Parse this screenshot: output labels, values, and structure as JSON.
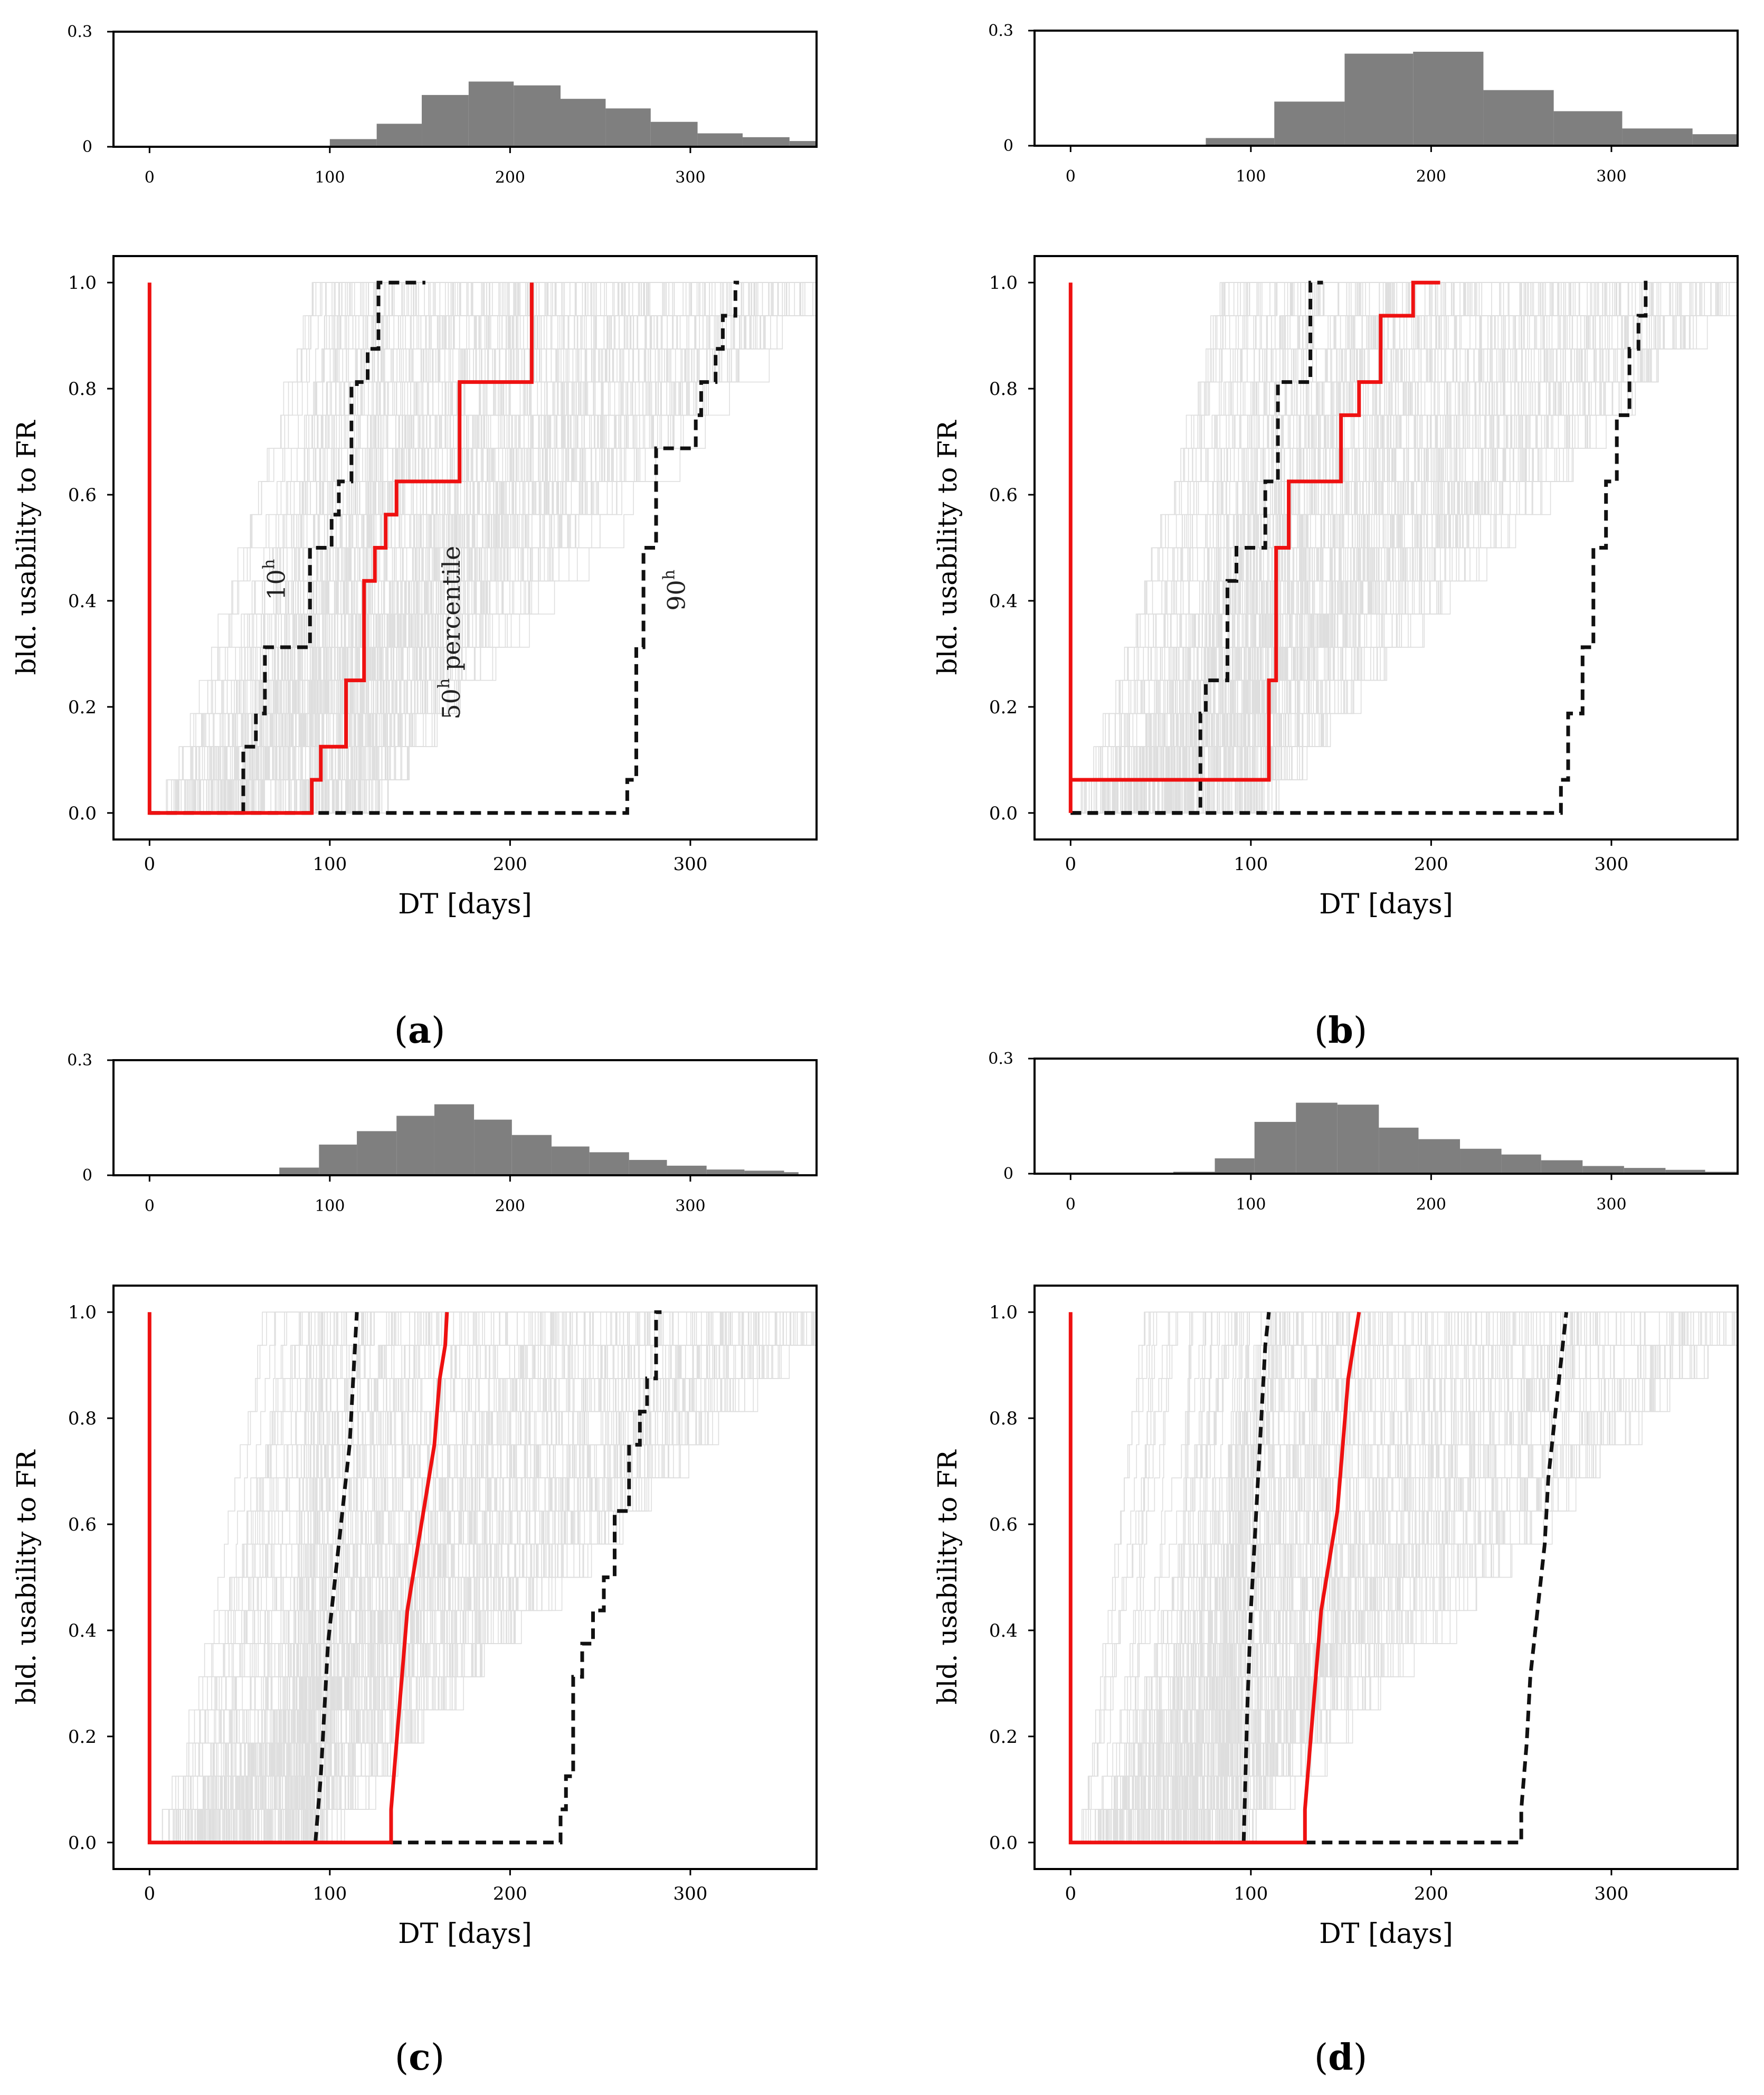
{
  "colors": {
    "hist_fill": "#7f7f7f",
    "trace": "#c4c4c4",
    "median": "#ee1111",
    "percentile": "#111111",
    "axis": "#000000"
  },
  "chart_data": [
    {
      "panel": "a",
      "type": "line",
      "label_letter": "a",
      "hist": {
        "type": "bar",
        "ylim": [
          0,
          0.3
        ],
        "yticks": [
          "0",
          "0.3"
        ],
        "xlim": [
          -20,
          370
        ],
        "xticks": [
          "0",
          "100",
          "200",
          "300"
        ],
        "bin_edges": [
          0,
          25,
          50,
          75,
          100,
          126,
          151,
          177,
          202,
          228,
          253,
          278,
          304,
          329,
          355,
          380
        ],
        "values": [
          0,
          0,
          0,
          0,
          0.02,
          0.06,
          0.135,
          0.17,
          0.16,
          0.125,
          0.1,
          0.065,
          0.035,
          0.025,
          0.015
        ]
      },
      "main": {
        "xlabel": "DT [days]",
        "ylabel": "bld. usability to FR",
        "xlim": [
          -20,
          370
        ],
        "ylim": [
          -0.05,
          1.05
        ],
        "xticks": [
          "0",
          "100",
          "200",
          "300"
        ],
        "yticks": [
          "0.0",
          "0.2",
          "0.4",
          "0.6",
          "0.8",
          "1.0"
        ],
        "trace_band": {
          "start_min": 0,
          "start_max": 120,
          "end_min": 90,
          "end_max": 370
        },
        "annotations": [
          {
            "base": "10",
            "sup": "h",
            "x": 75,
            "y": 0.44
          },
          {
            "base": "50",
            "sup": "h",
            "suffix": " percentile",
            "x": 172,
            "y": 0.34
          },
          {
            "base": "90",
            "sup": "h",
            "x": 297,
            "y": 0.42
          }
        ],
        "series": [
          {
            "name": "50th percentile",
            "role": "median",
            "x": [
              0,
              0,
              0,
              90,
              90,
              95,
              95,
              109,
              109,
              119,
              119,
              125,
              125,
              131,
              131,
              137,
              137,
              172,
              172,
              212,
              212
            ],
            "y": [
              1,
              0,
              0,
              0,
              0.0625,
              0.0625,
              0.125,
              0.125,
              0.25,
              0.25,
              0.4375,
              0.4375,
              0.5,
              0.5,
              0.5625,
              0.5625,
              0.625,
              0.625,
              0.8125,
              0.8125,
              1.0
            ]
          },
          {
            "name": "10th percentile",
            "role": "percentile",
            "x": [
              52,
              52,
              59,
              59,
              64,
              64,
              73,
              73,
              89,
              89,
              97,
              97,
              101,
              101,
              105,
              105,
              112,
              112,
              115,
              115,
              121,
              121,
              127,
              127,
              153
            ],
            "y": [
              0,
              0.125,
              0.125,
              0.1875,
              0.1875,
              0.3125,
              0.3125,
              0.3125,
              0.3125,
              0.5,
              0.5,
              0.5,
              0.5,
              0.5625,
              0.5625,
              0.625,
              0.625,
              0.8,
              0.8,
              0.8125,
              0.8125,
              0.875,
              0.875,
              1.0,
              1.0
            ]
          },
          {
            "name": "90th percentile",
            "role": "percentile",
            "x": [
              0,
              265,
              265,
              270,
              270,
              274,
              274,
              281,
              281,
              290,
              290,
              303,
              303,
              306,
              306,
              314,
              314,
              318,
              318,
              325,
              325,
              327
            ],
            "y": [
              0,
              0,
              0.0625,
              0.0625,
              0.3125,
              0.3125,
              0.5,
              0.5,
              0.6875,
              0.6875,
              0.6875,
              0.6875,
              0.75,
              0.75,
              0.8125,
              0.8125,
              0.875,
              0.875,
              0.9375,
              0.9375,
              1.0,
              1.0
            ]
          }
        ]
      }
    },
    {
      "panel": "b",
      "type": "line",
      "label_letter": "b",
      "hist": {
        "type": "bar",
        "ylim": [
          0,
          0.3
        ],
        "yticks": [
          "0",
          "0.3"
        ],
        "xlim": [
          -20,
          370
        ],
        "xticks": [
          "0",
          "100",
          "200",
          "300"
        ],
        "bin_edges": [
          0,
          25,
          50,
          75,
          113,
          152,
          190,
          229,
          268,
          306,
          345,
          384
        ],
        "values": [
          0,
          0,
          0,
          0.02,
          0.115,
          0.24,
          0.245,
          0.145,
          0.09,
          0.045,
          0.03
        ]
      },
      "main": {
        "xlabel": "DT [days]",
        "ylabel": "bld. usability to FR",
        "xlim": [
          -20,
          370
        ],
        "ylim": [
          -0.05,
          1.05
        ],
        "xticks": [
          "0",
          "100",
          "200",
          "300"
        ],
        "yticks": [
          "0.0",
          "0.2",
          "0.4",
          "0.6",
          "0.8",
          "1.0"
        ],
        "trace_band": {
          "start_min": 0,
          "start_max": 100,
          "end_min": 80,
          "end_max": 370
        },
        "annotations": [],
        "series": [
          {
            "name": "50th percentile",
            "role": "median",
            "x": [
              0,
              0,
              0,
              110,
              110,
              114,
              114,
              121,
              121,
              128,
              128,
              150,
              150,
              160,
              160,
              172,
              172,
              190,
              190,
              205
            ],
            "y": [
              1,
              0,
              0.0625,
              0.0625,
              0.25,
              0.25,
              0.5,
              0.5,
              0.625,
              0.625,
              0.625,
              0.625,
              0.75,
              0.75,
              0.8125,
              0.8125,
              0.9375,
              0.9375,
              1.0,
              1.0
            ]
          },
          {
            "name": "10th percentile",
            "role": "percentile",
            "x": [
              0,
              72,
              72,
              75,
              75,
              80,
              80,
              87,
              87,
              92,
              92,
              97,
              97,
              108,
              108,
              115,
              115,
              118,
              118,
              133,
              133,
              140
            ],
            "y": [
              0,
              0,
              0.1875,
              0.1875,
              0.25,
              0.25,
              0.25,
              0.25,
              0.4375,
              0.4375,
              0.5,
              0.5,
              0.5,
              0.5,
              0.625,
              0.625,
              0.8125,
              0.8125,
              0.8125,
              0.8125,
              1.0,
              1.0
            ]
          },
          {
            "name": "90th percentile",
            "role": "percentile",
            "x": [
              0,
              272,
              272,
              276,
              276,
              284,
              284,
              290,
              290,
              297,
              297,
              303,
              303,
              310,
              310,
              315,
              315,
              319,
              319,
              320
            ],
            "y": [
              0,
              0,
              0.0625,
              0.0625,
              0.1875,
              0.1875,
              0.3125,
              0.3125,
              0.5,
              0.5,
              0.625,
              0.625,
              0.75,
              0.75,
              0.875,
              0.875,
              0.9375,
              0.9375,
              1.0,
              1.0
            ]
          }
        ]
      }
    },
    {
      "panel": "c",
      "type": "line",
      "label_letter": "c",
      "hist": {
        "type": "bar",
        "ylim": [
          0,
          0.3
        ],
        "yticks": [
          "0",
          "0.3"
        ],
        "xlim": [
          -20,
          370
        ],
        "xticks": [
          "0",
          "100",
          "200",
          "300"
        ],
        "bin_edges": [
          0,
          25,
          50,
          72,
          94,
          115,
          137,
          158,
          180,
          201,
          223,
          244,
          266,
          287,
          309,
          330,
          352,
          360
        ],
        "values": [
          0,
          0,
          0,
          0.02,
          0.08,
          0.115,
          0.155,
          0.185,
          0.145,
          0.105,
          0.075,
          0.06,
          0.04,
          0.025,
          0.015,
          0.012,
          0.008
        ]
      },
      "main": {
        "xlabel": "DT [days]",
        "ylabel": "bld. usability to FR",
        "xlim": [
          -20,
          370
        ],
        "ylim": [
          -0.05,
          1.05
        ],
        "xticks": [
          "0",
          "100",
          "200",
          "300"
        ],
        "yticks": [
          "0.0",
          "0.2",
          "0.4",
          "0.6",
          "0.8",
          "1.0"
        ],
        "trace_band": {
          "start_min": 0,
          "start_max": 90,
          "end_min": 60,
          "end_max": 370
        },
        "annotations": [],
        "series": [
          {
            "name": "50th percentile",
            "role": "median",
            "x": [
              0,
              0,
              0,
              134,
              134,
              137,
              140,
              143,
              146,
              149,
              152,
              155,
              158,
              161,
              164,
              165
            ],
            "y": [
              1,
              0,
              0,
              0,
              0.0625,
              0.1875,
              0.3125,
              0.4375,
              0.5,
              0.5625,
              0.625,
              0.6875,
              0.75,
              0.875,
              0.9375,
              1.0
            ]
          },
          {
            "name": "10th percentile",
            "role": "percentile",
            "x": [
              134,
              228,
              228,
              231,
              231,
              235,
              235,
              240,
              240,
              246,
              246,
              252,
              252,
              258,
              258,
              266,
              266,
              272,
              272,
              276,
              276,
              281,
              281,
              284
            ],
            "y": [
              0,
              0,
              0.0625,
              0.0625,
              0.125,
              0.125,
              0.3125,
              0.3125,
              0.375,
              0.375,
              0.4375,
              0.4375,
              0.5,
              0.5,
              0.625,
              0.625,
              0.75,
              0.75,
              0.8125,
              0.8125,
              0.875,
              0.875,
              1.0,
              1.0
            ]
          },
          {
            "name": "90th percentile",
            "role": "percentile",
            "x": [
              92,
              95,
              97,
              99,
              101,
              103,
              105,
              107,
              109,
              111,
              113,
              115
            ],
            "y": [
              0,
              0.125,
              0.25,
              0.375,
              0.4375,
              0.5,
              0.5625,
              0.625,
              0.6875,
              0.75,
              0.875,
              1.0
            ]
          }
        ]
      }
    },
    {
      "panel": "d",
      "type": "line",
      "label_letter": "d",
      "hist": {
        "type": "bar",
        "ylim": [
          0,
          0.3
        ],
        "yticks": [
          "0",
          "0.3"
        ],
        "xlim": [
          -20,
          370
        ],
        "xticks": [
          "0",
          "100",
          "200",
          "300"
        ],
        "bin_edges": [
          0,
          25,
          50,
          57,
          80,
          102,
          125,
          148,
          171,
          193,
          216,
          239,
          261,
          284,
          307,
          330,
          352,
          375
        ],
        "values": [
          0,
          0,
          0,
          0.005,
          0.04,
          0.135,
          0.185,
          0.18,
          0.12,
          0.09,
          0.065,
          0.05,
          0.035,
          0.02,
          0.015,
          0.01,
          0.005
        ]
      },
      "main": {
        "xlabel": "DT [days]",
        "ylabel": "bld. usability to FR",
        "xlim": [
          -20,
          370
        ],
        "ylim": [
          -0.05,
          1.05
        ],
        "xticks": [
          "0",
          "100",
          "200",
          "300"
        ],
        "yticks": [
          "0.0",
          "0.2",
          "0.4",
          "0.6",
          "0.8",
          "1.0"
        ],
        "trace_band": {
          "start_min": 0,
          "start_max": 90,
          "end_min": 40,
          "end_max": 370
        },
        "annotations": [],
        "series": [
          {
            "name": "50th percentile",
            "role": "median",
            "x": [
              0,
              0,
              0,
              130,
              130,
              133,
              136,
              139,
              142,
              145,
              148,
              151,
              154,
              157,
              160
            ],
            "y": [
              1,
              0,
              0,
              0,
              0.0625,
              0.1875,
              0.3125,
              0.4375,
              0.5,
              0.5625,
              0.625,
              0.75,
              0.875,
              0.9375,
              1.0
            ]
          },
          {
            "name": "10th percentile",
            "role": "percentile",
            "x": [
              130,
              250,
              250,
              253,
              255,
              257,
              259,
              261,
              263,
              265,
              267,
              269,
              271,
              273,
              275
            ],
            "y": [
              0,
              0,
              0.0625,
              0.1875,
              0.3125,
              0.375,
              0.4375,
              0.5,
              0.5625,
              0.6875,
              0.75,
              0.8125,
              0.875,
              0.9375,
              1.0
            ]
          },
          {
            "name": "90th percentile",
            "role": "percentile",
            "x": [
              96,
              98,
              100,
              102,
              104,
              106,
              108,
              110
            ],
            "y": [
              0,
              0.25,
              0.4375,
              0.5625,
              0.6875,
              0.8125,
              0.9375,
              1.0
            ]
          }
        ]
      }
    }
  ]
}
